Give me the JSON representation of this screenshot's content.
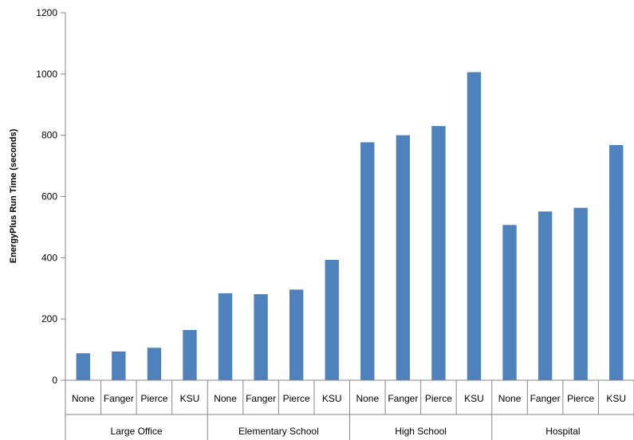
{
  "chart_data": {
    "type": "bar",
    "title": "",
    "xlabel": "",
    "ylabel": "EnergyPlus Run Time (seconds)",
    "ylim": [
      0,
      1200
    ],
    "yticks": [
      0,
      200,
      400,
      600,
      800,
      1000,
      1200
    ],
    "grid": false,
    "legend": "none",
    "bar_color": "#4F81BD",
    "groups": [
      {
        "label": "Large Office",
        "categories": [
          "None",
          "Fanger",
          "Pierce",
          "KSU"
        ],
        "values": [
          88,
          94,
          106,
          164
        ]
      },
      {
        "label": "Elementary School",
        "categories": [
          "None",
          "Fanger",
          "Pierce",
          "KSU"
        ],
        "values": [
          284,
          281,
          296,
          393
        ]
      },
      {
        "label": "High School",
        "categories": [
          "None",
          "Fanger",
          "Pierce",
          "KSU"
        ],
        "values": [
          777,
          800,
          830,
          1006
        ]
      },
      {
        "label": "Hospital",
        "categories": [
          "None",
          "Fanger",
          "Pierce",
          "KSU"
        ],
        "values": [
          507,
          551,
          563,
          768
        ]
      }
    ]
  }
}
